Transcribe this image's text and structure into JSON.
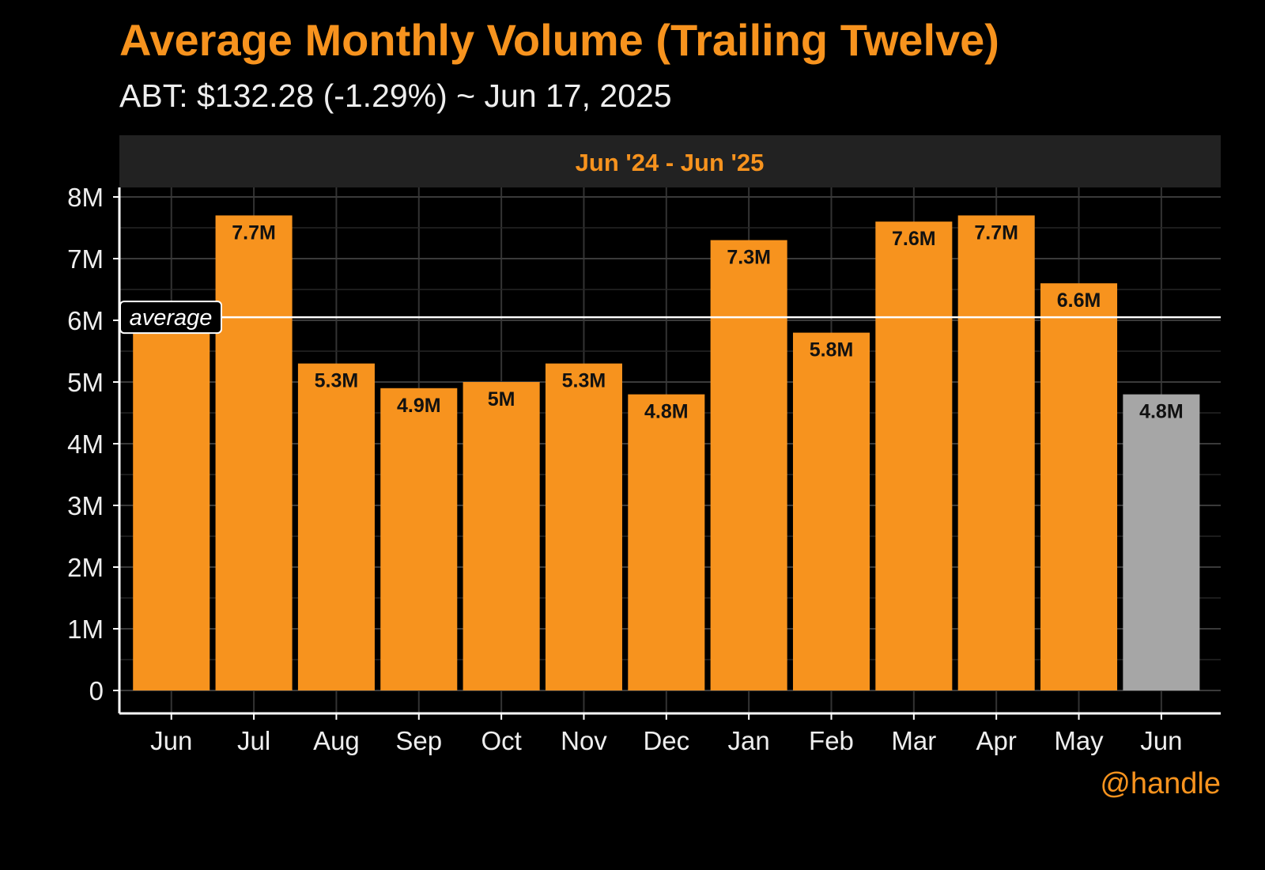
{
  "header": {
    "title": "Average Monthly Volume (Trailing Twelve)",
    "subtitle": "ABT: $132.28 (-1.29%) ~ Jun 17, 2025"
  },
  "credit": "@handle",
  "colors": {
    "background": "#000000",
    "bar": "#F7931E",
    "bar_current": "#A6A6A6",
    "title": "#F7931E",
    "panel_strip": "#222222",
    "grid": "#333333",
    "text": "#EEEEEE",
    "average_line": "#FFFFFF"
  },
  "chart_data": {
    "type": "bar",
    "panel_label": "Jun '24 - Jun '25",
    "categories": [
      "Jun",
      "Jul",
      "Aug",
      "Sep",
      "Oct",
      "Nov",
      "Dec",
      "Jan",
      "Feb",
      "Mar",
      "Apr",
      "May",
      "Jun"
    ],
    "values": [
      6.0,
      7.7,
      5.3,
      4.9,
      5.0,
      5.3,
      4.8,
      7.3,
      5.8,
      7.6,
      7.7,
      6.6,
      4.8
    ],
    "value_labels": [
      "",
      "7.7M",
      "5.3M",
      "4.9M",
      "5M",
      "5.3M",
      "4.8M",
      "7.3M",
      "5.8M",
      "7.6M",
      "7.7M",
      "6.6M",
      "4.8M"
    ],
    "highlight_last": true,
    "average": 6.05,
    "average_label": "average",
    "y_ticks": [
      0,
      1,
      2,
      3,
      4,
      5,
      6,
      7,
      8
    ],
    "y_tick_labels": [
      "0",
      "1M",
      "2M",
      "3M",
      "4M",
      "5M",
      "6M",
      "7M",
      "8M"
    ],
    "ylim": [
      0,
      8
    ],
    "grid": true
  }
}
